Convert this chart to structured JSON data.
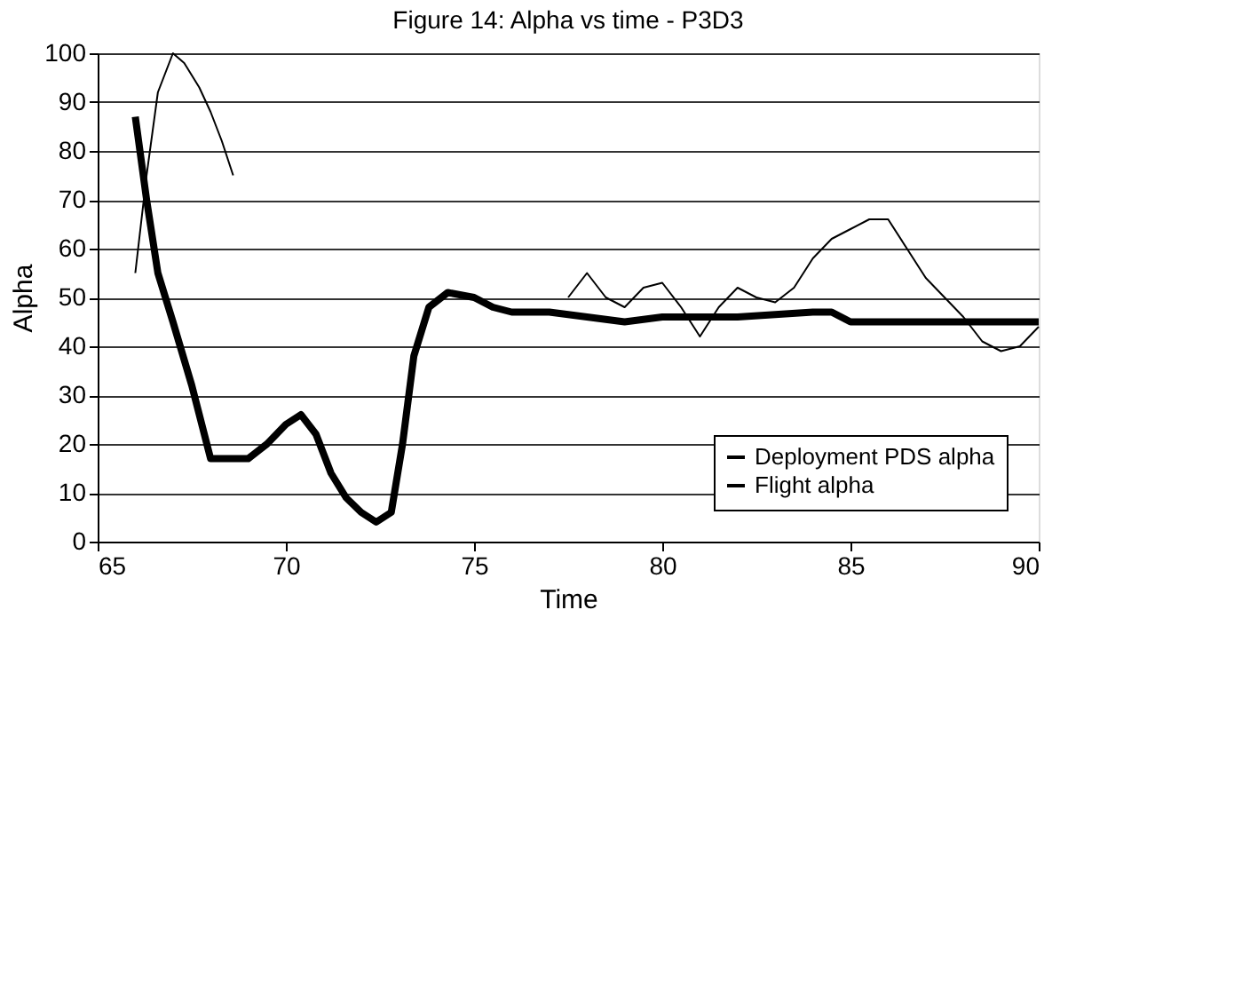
{
  "chart_data": {
    "type": "line",
    "title": "Figure 14:  Alpha vs time - P3D3",
    "xlabel": "Time",
    "ylabel": "Alpha",
    "xlim": [
      65,
      90
    ],
    "xticks": [
      65,
      70,
      75,
      80,
      85,
      90
    ],
    "ylim": [
      0,
      100
    ],
    "yticks": [
      0,
      10,
      20,
      30,
      40,
      50,
      60,
      70,
      80,
      90,
      100
    ],
    "grid": "y",
    "legend": "bottom right",
    "marker": "none",
    "line_style": "solid",
    "series": [
      {
        "name": "Deployment PDS alpha",
        "color": "#000000",
        "x": [
          66,
          66.3,
          66.6,
          67,
          67.5,
          68,
          68.5,
          69,
          69.5,
          70,
          70.4,
          70.8,
          71.2,
          71.6,
          72,
          72.4,
          72.8,
          73.1,
          73.4,
          73.8,
          74.3,
          75,
          75.5,
          76,
          77,
          78,
          79,
          80,
          82,
          84,
          84.5,
          85,
          87,
          90
        ],
        "values": [
          87,
          70,
          55,
          45,
          32,
          17,
          17,
          17,
          20,
          24,
          26,
          22,
          14,
          9,
          6,
          4,
          6,
          20,
          38,
          48,
          51,
          50,
          48,
          47,
          47,
          46,
          45,
          46,
          46,
          47,
          47,
          45,
          45,
          45
        ]
      },
      {
        "name": "Flight alpha",
        "color": "#000000",
        "x": [
          66,
          66.3,
          66.6,
          67,
          67.3,
          67.7,
          68,
          68.3,
          68.6,
          77,
          77.5,
          78,
          78.5,
          79,
          79.5,
          80,
          80.5,
          81,
          81.5,
          82,
          82.5,
          83,
          83.5,
          84,
          84.5,
          85,
          85.5,
          86,
          86.5,
          87,
          87.5,
          88,
          88.5,
          89,
          89.5,
          90
        ],
        "values": [
          55,
          75,
          92,
          100,
          98,
          93,
          88,
          82,
          75,
          null,
          50,
          55,
          50,
          48,
          52,
          53,
          48,
          42,
          48,
          52,
          50,
          49,
          52,
          58,
          62,
          64,
          66,
          66,
          60,
          54,
          50,
          46,
          41,
          39,
          40,
          44
        ]
      }
    ]
  }
}
